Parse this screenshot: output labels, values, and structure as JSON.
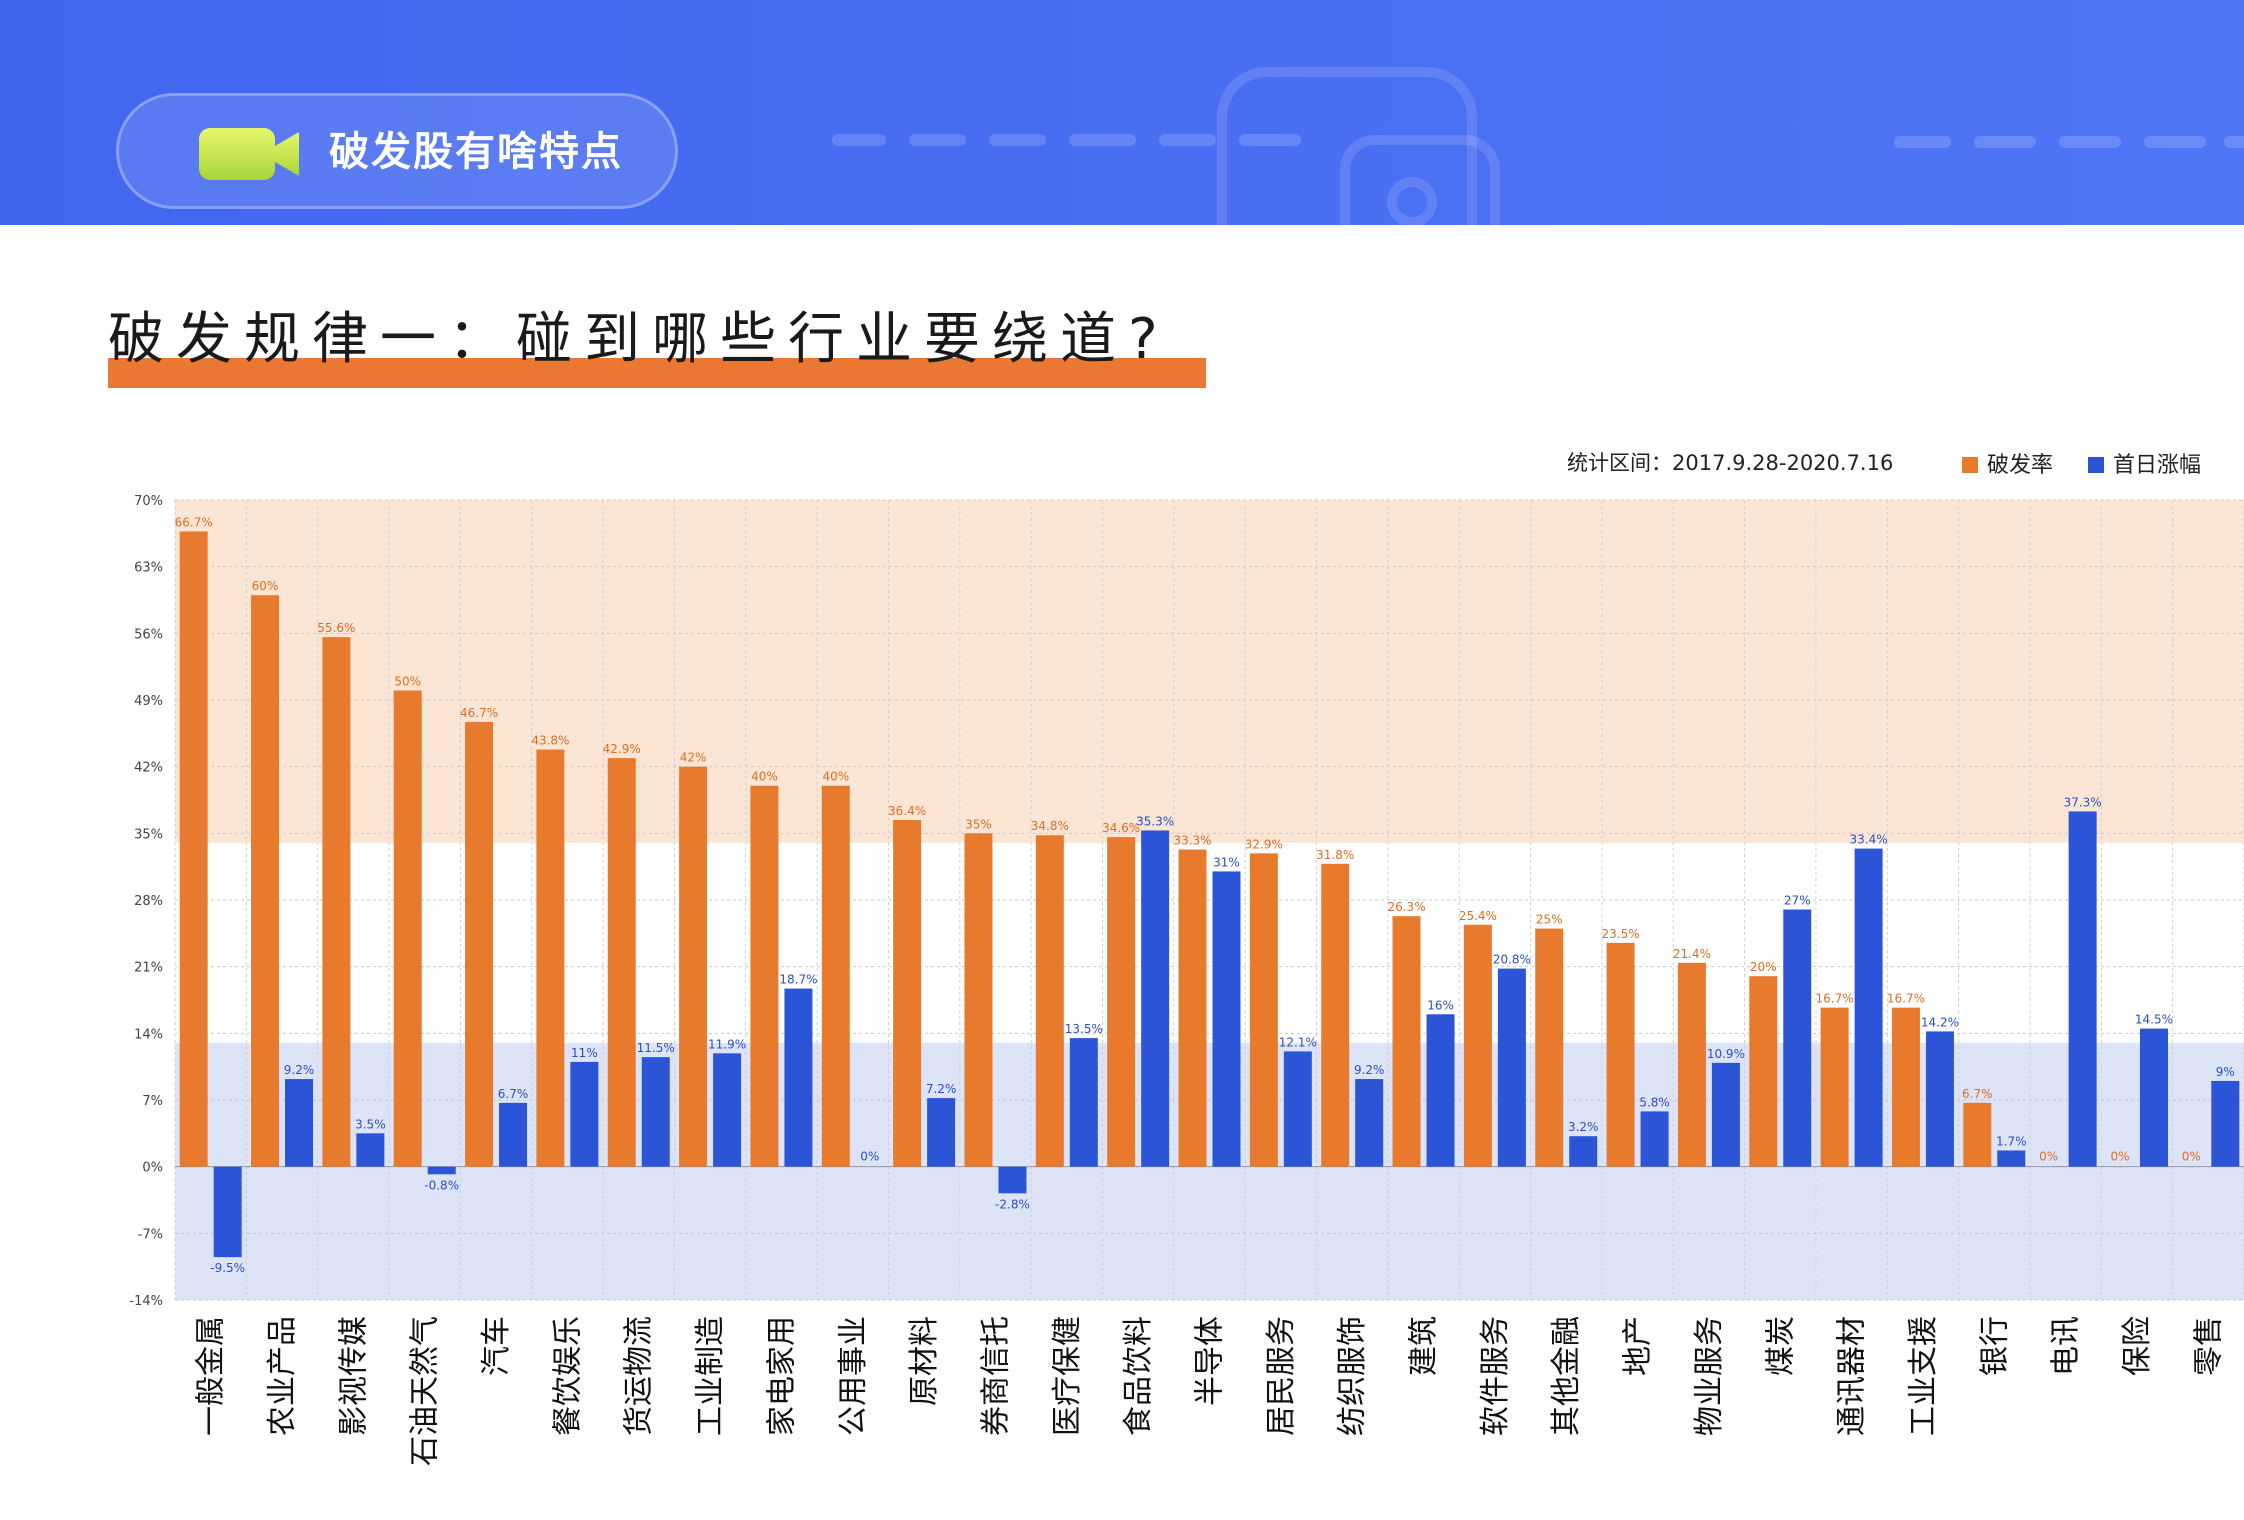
{
  "header": {
    "title": "破发股有啥特点",
    "icon": "video-camera-icon"
  },
  "headline": "破发规律一：碰到哪些行业要绕道?",
  "stat_period": "统计区间：2017.9.28-2020.7.16",
  "colors": {
    "breakRate": "#e87a2e",
    "firstDayGain": "#2b55d6",
    "banner": "#4a6ff3",
    "highlight": "#ea7832"
  },
  "chart_data": {
    "type": "bar",
    "title": "",
    "xlabel": "",
    "ylabel": "",
    "ylim": [
      -14,
      70
    ],
    "yticks": [
      70,
      63,
      56,
      49,
      42,
      35,
      28,
      21,
      14,
      7,
      0,
      -7,
      -14
    ],
    "ytick_labels": [
      "70%",
      "63%",
      "56%",
      "49%",
      "42%",
      "35%",
      "28%",
      "21%",
      "14%",
      "7%",
      "0%",
      "-7%",
      "-14%"
    ],
    "grid": true,
    "legend_position": "top-right",
    "shaded_bands": [
      {
        "from": 34,
        "to": 70,
        "color": "#fbe6d6"
      },
      {
        "from": -14,
        "to": 13,
        "color": "#dde4f8"
      }
    ],
    "categories": [
      "一般金属",
      "农业产品",
      "影视传媒",
      "石油天然气",
      "汽车",
      "餐饮娱乐",
      "货运物流",
      "工业制造",
      "家电家用",
      "公用事业",
      "原材料",
      "券商信托",
      "医疗保健",
      "食品饮料",
      "半导体",
      "居民服务",
      "纺织服饰",
      "建筑",
      "软件服务",
      "其他金融",
      "地产",
      "物业服务",
      "煤炭",
      "通讯器材",
      "工业支援",
      "银行",
      "电讯",
      "保险",
      "零售"
    ],
    "series": [
      {
        "name": "破发率",
        "color": "#e87a2e",
        "values": [
          66.7,
          60,
          55.6,
          50,
          46.7,
          43.8,
          42.9,
          42,
          40,
          40,
          36.4,
          35,
          34.8,
          34.6,
          33.3,
          32.9,
          31.8,
          26.3,
          25.4,
          25,
          23.5,
          21.4,
          20,
          16.7,
          16.7,
          6.7,
          0,
          0,
          0
        ],
        "labels": [
          "66.7%",
          "60%",
          "55.6%",
          "50%",
          "46.7%",
          "43.8%",
          "42.9%",
          "42%",
          "40%",
          "40%",
          "36.4%",
          "35%",
          "34.8%",
          "34.6%",
          "33.3%",
          "32.9%",
          "31.8%",
          "26.3%",
          "25.4%",
          "25%",
          "23.5%",
          "21.4%",
          "20%",
          "16.7%",
          "16.7%",
          "6.7%",
          "0%",
          "0%",
          "0%"
        ]
      },
      {
        "name": "首日涨幅",
        "color": "#2b55d6",
        "values": [
          -9.5,
          9.2,
          3.5,
          -0.8,
          6.7,
          11,
          11.5,
          11.9,
          18.7,
          0,
          7.2,
          -2.8,
          13.5,
          35.3,
          31,
          12.1,
          9.2,
          16,
          20.8,
          3.2,
          5.8,
          10.9,
          27,
          33.4,
          14.2,
          1.7,
          37.3,
          14.5,
          9
        ],
        "labels": [
          "-9.5%",
          "9.2%",
          "3.5%",
          "-0.8%",
          "6.7%",
          "11%",
          "11.5%",
          "11.9%",
          "18.7%",
          "0%",
          "7.2%",
          "-2.8%",
          "13.5%",
          "35.3%",
          "31%",
          "12.1%",
          "9.2%",
          "16%",
          "20.8%",
          "3.2%",
          "5.8%",
          "10.9%",
          "27%",
          "33.4%",
          "14.2%",
          "1.7%",
          "37.3%",
          "14.5%",
          "9%"
        ]
      }
    ]
  }
}
